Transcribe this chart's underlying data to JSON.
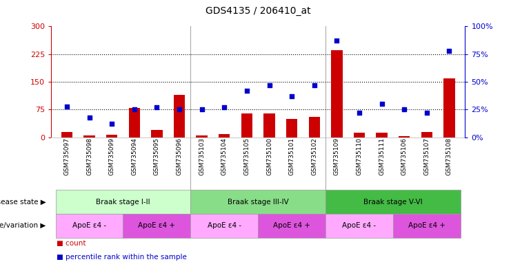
{
  "title": "GDS4135 / 206410_at",
  "samples": [
    "GSM735097",
    "GSM735098",
    "GSM735099",
    "GSM735094",
    "GSM735095",
    "GSM735096",
    "GSM735103",
    "GSM735104",
    "GSM735105",
    "GSM735100",
    "GSM735101",
    "GSM735102",
    "GSM735109",
    "GSM735110",
    "GSM735111",
    "GSM735106",
    "GSM735107",
    "GSM735108"
  ],
  "counts": [
    15,
    5,
    7,
    80,
    20,
    115,
    5,
    8,
    65,
    65,
    50,
    55,
    235,
    12,
    12,
    3,
    15,
    160
  ],
  "percentiles": [
    28,
    18,
    12,
    25,
    27,
    25,
    25,
    27,
    42,
    47,
    37,
    47,
    87,
    22,
    30,
    25,
    22,
    78
  ],
  "left_ylim": [
    0,
    300
  ],
  "right_ylim": [
    0,
    100
  ],
  "left_yticks": [
    0,
    75,
    150,
    225,
    300
  ],
  "right_yticks": [
    0,
    25,
    50,
    75,
    100
  ],
  "left_ytick_labels": [
    "0",
    "75",
    "150",
    "225",
    "300"
  ],
  "right_ytick_labels": [
    "0%",
    "25%",
    "50%",
    "75%",
    "100%"
  ],
  "bar_color": "#cc0000",
  "dot_color": "#0000cc",
  "disease_state_groups": [
    {
      "label": "Braak stage I-II",
      "start": 0,
      "end": 6,
      "color": "#ccffcc"
    },
    {
      "label": "Braak stage III-IV",
      "start": 6,
      "end": 12,
      "color": "#88dd88"
    },
    {
      "label": "Braak stage V-VI",
      "start": 12,
      "end": 18,
      "color": "#44bb44"
    }
  ],
  "genotype_groups": [
    {
      "label": "ApoE ε4 -",
      "start": 0,
      "end": 3,
      "color": "#ffaaff"
    },
    {
      "label": "ApoE ε4 +",
      "start": 3,
      "end": 6,
      "color": "#dd55dd"
    },
    {
      "label": "ApoE ε4 -",
      "start": 6,
      "end": 9,
      "color": "#ffaaff"
    },
    {
      "label": "ApoE ε4 +",
      "start": 9,
      "end": 12,
      "color": "#dd55dd"
    },
    {
      "label": "ApoE ε4 -",
      "start": 12,
      "end": 15,
      "color": "#ffaaff"
    },
    {
      "label": "ApoE ε4 +",
      "start": 15,
      "end": 18,
      "color": "#dd55dd"
    }
  ],
  "left_label_color": "#cc0000",
  "right_label_color": "#0000cc",
  "background_color": "#ffffff",
  "dotted_lines": [
    75,
    150,
    225
  ],
  "disease_state_label": "disease state",
  "genotype_label": "genotype/variation",
  "legend_count_label": "count",
  "legend_pct_label": "percentile rank within the sample",
  "xlim": [
    -0.7,
    17.7
  ]
}
